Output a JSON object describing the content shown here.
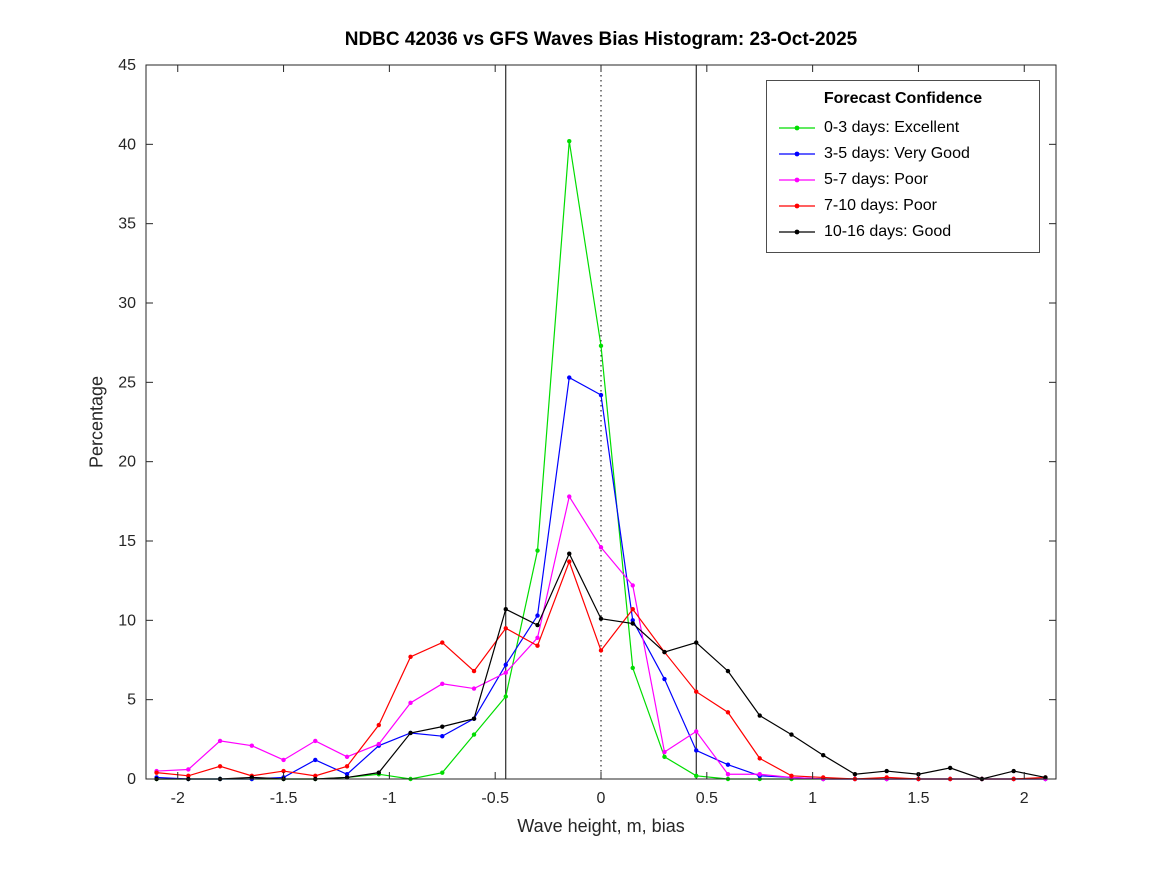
{
  "chart_data": {
    "type": "line",
    "title": "NDBC 42036 vs GFS Waves Bias Histogram: 23-Oct-2025",
    "xlabel": "Wave height, m, bias",
    "ylabel": "Percentage",
    "legend_title": "Forecast Confidence",
    "legend_position": "top-right",
    "grid": false,
    "background": "#ffffff",
    "axis_color": "#262626",
    "xlim": [
      -2.15,
      2.15
    ],
    "ylim": [
      0,
      45
    ],
    "xticks": [
      -2,
      -1.5,
      -1,
      -0.5,
      0,
      0.5,
      1,
      1.5,
      2
    ],
    "yticks": [
      0,
      5,
      10,
      15,
      20,
      25,
      30,
      35,
      40,
      45
    ],
    "reference_lines": {
      "solid_x": [
        -0.45,
        0.45
      ],
      "dotted_x": [
        0
      ]
    },
    "x": [
      -2.1,
      -1.95,
      -1.8,
      -1.65,
      -1.5,
      -1.35,
      -1.2,
      -1.05,
      -0.9,
      -0.75,
      -0.6,
      -0.45,
      -0.3,
      -0.15,
      0,
      0.15,
      0.3,
      0.45,
      0.6,
      0.75,
      0.9,
      1.05,
      1.2,
      1.35,
      1.5,
      1.65,
      1.8,
      1.95,
      2.1
    ],
    "series": [
      {
        "name": "0-3 days: Excellent",
        "color": "#00dd00",
        "values": [
          0,
          0,
          0,
          0,
          0,
          0,
          0.1,
          0.3,
          0,
          0.4,
          2.8,
          5.2,
          14.4,
          40.2,
          27.3,
          7.0,
          1.4,
          0.2,
          0,
          0,
          0,
          0,
          0,
          0,
          0,
          0,
          0,
          0,
          0
        ]
      },
      {
        "name": "3-5 days: Very Good",
        "color": "#0000ff",
        "values": [
          0.1,
          0,
          0,
          0,
          0.1,
          1.2,
          0.3,
          2.1,
          2.9,
          2.7,
          3.8,
          7.2,
          10.3,
          25.3,
          24.2,
          10.0,
          6.3,
          1.8,
          0.9,
          0.2,
          0.1,
          0,
          0,
          0,
          0,
          0,
          0,
          0,
          0
        ]
      },
      {
        "name": "5-7 days: Poor",
        "color": "#ff00ff",
        "values": [
          0.5,
          0.6,
          2.4,
          2.1,
          1.2,
          2.4,
          1.4,
          2.2,
          4.8,
          6.0,
          5.7,
          6.7,
          8.9,
          17.8,
          14.6,
          12.2,
          1.7,
          3.0,
          0.3,
          0.3,
          0.1,
          0,
          0,
          0,
          0,
          0,
          0,
          0,
          0
        ]
      },
      {
        "name": "7-10 days: Poor",
        "color": "#ff0000",
        "values": [
          0.4,
          0.2,
          0.8,
          0.2,
          0.5,
          0.2,
          0.8,
          3.4,
          7.7,
          8.6,
          6.8,
          9.5,
          8.4,
          13.7,
          8.1,
          10.7,
          8.0,
          5.5,
          4.2,
          1.3,
          0.2,
          0.1,
          0,
          0.1,
          0,
          0,
          0,
          0,
          0.1
        ]
      },
      {
        "name": "10-16 days: Good",
        "color": "#000000",
        "values": [
          0,
          0,
          0,
          0.1,
          0,
          0,
          0.1,
          0.4,
          2.9,
          3.3,
          3.8,
          10.7,
          9.7,
          14.2,
          10.1,
          9.8,
          8.0,
          8.6,
          6.8,
          4.0,
          2.8,
          1.5,
          0.3,
          0.5,
          0.3,
          0.7,
          0,
          0.5,
          0.1
        ]
      }
    ]
  }
}
